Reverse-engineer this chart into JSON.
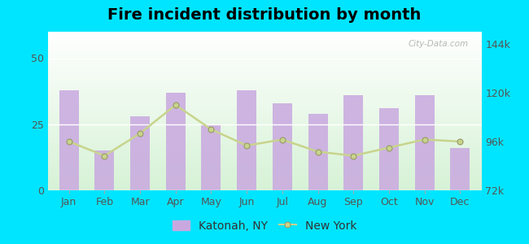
{
  "title": "Fire incident distribution by month",
  "months": [
    "Jan",
    "Feb",
    "Mar",
    "Apr",
    "May",
    "Jun",
    "Jul",
    "Aug",
    "Sep",
    "Oct",
    "Nov",
    "Dec"
  ],
  "katonah_values": [
    38,
    15,
    28,
    37,
    25,
    38,
    33,
    29,
    36,
    31,
    36,
    16
  ],
  "newyork_values": [
    96000,
    89000,
    100000,
    114000,
    102000,
    94000,
    97000,
    91000,
    89000,
    93000,
    97000,
    96000
  ],
  "bar_color": "#c9a8e0",
  "line_color": "#c8d48c",
  "line_marker": "o",
  "bg_top": "#ffffff",
  "bg_bottom": "#d8f0d8",
  "outer_bg": "#00e5ff",
  "left_ylim": [
    0,
    60
  ],
  "right_ylim": [
    72000,
    150000
  ],
  "left_yticks": [
    0,
    25,
    50
  ],
  "right_yticks": [
    72000,
    96000,
    120000,
    144000
  ],
  "right_yticklabels": [
    "72k",
    "96k",
    "120k",
    "144k"
  ],
  "watermark": "City-Data.com",
  "legend_katonah": "Katonah, NY",
  "legend_newyork": "New York",
  "title_fontsize": 14,
  "tick_fontsize": 9,
  "legend_fontsize": 10
}
